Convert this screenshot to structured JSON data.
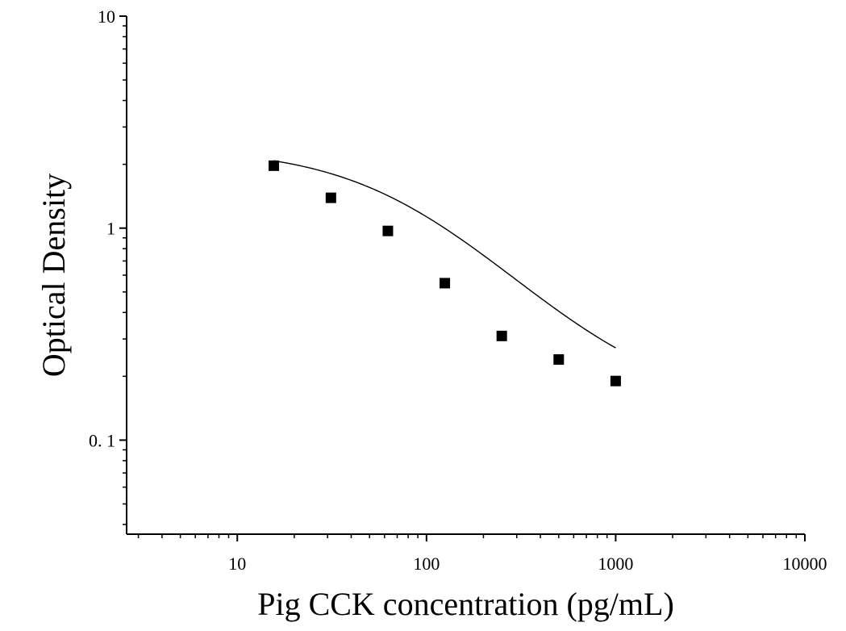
{
  "chart_data": {
    "type": "scatter",
    "title": "",
    "xlabel": "Pig CCK concentration (pg/mL)",
    "ylabel": "Optical Density",
    "x_scale": "log",
    "y_scale": "log",
    "xlim": [
      2.6,
      10000
    ],
    "ylim": [
      0.036,
      10
    ],
    "x_ticks": [
      {
        "value": 10,
        "label": "10"
      },
      {
        "value": 100,
        "label": "100"
      },
      {
        "value": 1000,
        "label": "1000"
      },
      {
        "value": 10000,
        "label": "10000"
      }
    ],
    "y_ticks": [
      {
        "value": 0.1,
        "label": "0. 1"
      },
      {
        "value": 1,
        "label": "1"
      },
      {
        "value": 10,
        "label": "10"
      }
    ],
    "grid": false,
    "legend": "none",
    "marker": "square",
    "series": [
      {
        "x": [
          15.6,
          31.25,
          62.5,
          125,
          250,
          500,
          1000
        ],
        "y": [
          1.97,
          1.39,
          0.97,
          0.55,
          0.31,
          0.24,
          0.19
        ]
      }
    ],
    "fit_curve": {
      "x_range": [
        15.6,
        1000
      ],
      "model": "4PL",
      "params": {
        "A": 2.4,
        "D": 0.14,
        "C": 80,
        "B": 1.1
      }
    },
    "colors": {
      "marker": "#000000",
      "line": "#000000",
      "axis": "#000000"
    }
  }
}
